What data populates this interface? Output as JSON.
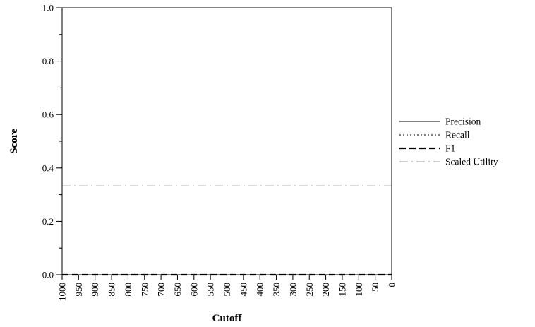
{
  "chart_data": {
    "type": "line",
    "title": "",
    "xlabel": "Cutoff",
    "ylabel": "Score",
    "x": [
      1000,
      950,
      900,
      850,
      800,
      750,
      700,
      650,
      600,
      550,
      500,
      450,
      400,
      350,
      300,
      250,
      200,
      150,
      100,
      50,
      0
    ],
    "x_reversed": true,
    "xlim": [
      1000,
      0
    ],
    "ylim": [
      0.0,
      1.0
    ],
    "y_ticks": [
      "0.0",
      "0.2",
      "0.4",
      "0.6",
      "0.8",
      "1.0"
    ],
    "x_ticks": [
      "1000",
      "950",
      "900",
      "850",
      "800",
      "750",
      "700",
      "650",
      "600",
      "550",
      "500",
      "450",
      "400",
      "350",
      "300",
      "250",
      "200",
      "150",
      "100",
      "50",
      "0"
    ],
    "grid": false,
    "legend_position": "right",
    "series": [
      {
        "name": "Precision",
        "style": "solid",
        "color": "#000000",
        "values": [
          0,
          0,
          0,
          0,
          0,
          0,
          0,
          0,
          0,
          0,
          0,
          0,
          0,
          0,
          0,
          0,
          0,
          0,
          0,
          0,
          0
        ]
      },
      {
        "name": "Recall",
        "style": "dotted",
        "color": "#000000",
        "values": [
          0,
          0,
          0,
          0,
          0,
          0,
          0,
          0,
          0,
          0,
          0,
          0,
          0,
          0,
          0,
          0,
          0,
          0,
          0,
          0,
          0
        ]
      },
      {
        "name": "F1",
        "style": "dashed",
        "color": "#000000",
        "values": [
          0,
          0,
          0,
          0,
          0,
          0,
          0,
          0,
          0,
          0,
          0,
          0,
          0,
          0,
          0,
          0,
          0,
          0,
          0,
          0,
          0
        ]
      },
      {
        "name": "Scaled Utility",
        "style": "dashdot",
        "color": "#999999",
        "values": [
          0.333,
          0.333,
          0.333,
          0.333,
          0.333,
          0.333,
          0.333,
          0.333,
          0.333,
          0.333,
          0.333,
          0.333,
          0.333,
          0.333,
          0.333,
          0.333,
          0.333,
          0.333,
          0.333,
          0.333,
          0.333
        ]
      }
    ]
  }
}
